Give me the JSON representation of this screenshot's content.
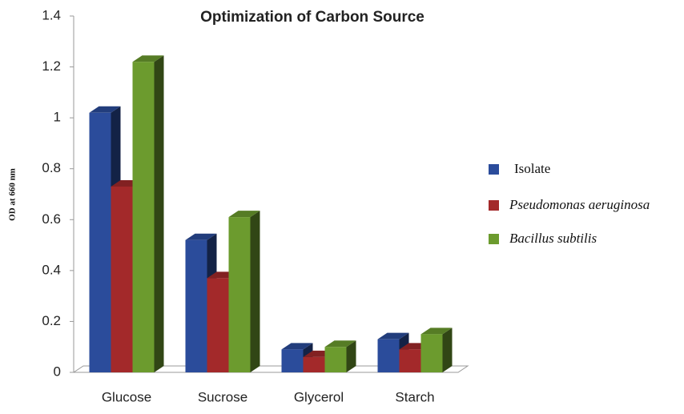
{
  "chart_data": {
    "type": "bar3d",
    "title": "Optimization of Carbon Source",
    "y_label": "OD at 660 nm",
    "categories": [
      "Glucose",
      "Sucrose",
      "Glycerol",
      "Starch"
    ],
    "series": [
      {
        "name": "Isolate",
        "color": "#2b4c9b",
        "values": [
          1.02,
          0.52,
          0.09,
          0.13
        ]
      },
      {
        "name": "Pseudomonas aeruginosa",
        "color": "#a3292a",
        "values": [
          0.73,
          0.37,
          0.06,
          0.09
        ]
      },
      {
        "name": "Bacillus subtilis",
        "color": "#6c9b2e",
        "values": [
          1.22,
          0.61,
          0.1,
          0.15
        ]
      }
    ],
    "ylim": [
      0,
      1.4
    ],
    "yticks": [
      0,
      0.2,
      0.4,
      0.6,
      0.8,
      1,
      1.2,
      1.4
    ],
    "legend": "right"
  }
}
